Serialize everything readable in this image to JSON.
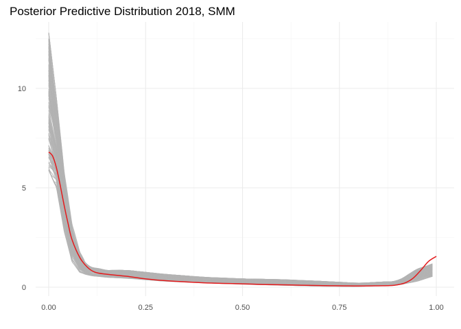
{
  "chart_data": {
    "type": "line",
    "title": "Posterior Predictive Distribution 2018, SMM",
    "xlabel": "",
    "ylabel": "",
    "xlim": [
      0,
      1
    ],
    "ylim": [
      0,
      12.8
    ],
    "x_ticks": [
      0,
      0.25,
      0.5,
      0.75,
      1
    ],
    "x_tick_labels": [
      "0.00",
      "0.25",
      "0.50",
      "0.75",
      "1.00"
    ],
    "y_ticks": [
      0,
      5,
      10
    ],
    "y_tick_labels": [
      "0",
      "5",
      "10"
    ],
    "grid": true,
    "legend": "none",
    "colors": {
      "replicates": "#b3b3b3",
      "observed": "#e41a1c"
    },
    "observed_density": {
      "x": [
        0,
        0.01,
        0.02,
        0.03,
        0.04,
        0.05,
        0.06,
        0.08,
        0.1,
        0.12,
        0.15,
        0.2,
        0.25,
        0.3,
        0.35,
        0.4,
        0.45,
        0.5,
        0.55,
        0.6,
        0.65,
        0.7,
        0.75,
        0.8,
        0.85,
        0.88,
        0.9,
        0.92,
        0.94,
        0.96,
        0.98,
        1.0
      ],
      "y": [
        6.8,
        6.6,
        6.0,
        5.1,
        4.1,
        3.2,
        2.4,
        1.5,
        1.0,
        0.75,
        0.65,
        0.55,
        0.42,
        0.33,
        0.27,
        0.22,
        0.19,
        0.17,
        0.14,
        0.12,
        0.1,
        0.08,
        0.07,
        0.06,
        0.07,
        0.08,
        0.12,
        0.22,
        0.45,
        0.85,
        1.3,
        1.55
      ]
    },
    "replicate_envelope": {
      "x": [
        0,
        0.02,
        0.04,
        0.06,
        0.08,
        0.1,
        0.15,
        0.2,
        0.3,
        0.4,
        0.5,
        0.6,
        0.7,
        0.8,
        0.9,
        0.95,
        1.0
      ],
      "y_low": [
        5.9,
        5.0,
        2.8,
        1.3,
        0.75,
        0.6,
        0.5,
        0.45,
        0.3,
        0.22,
        0.15,
        0.1,
        0.05,
        0.04,
        0.1,
        0.3,
        0.6
      ],
      "y_high": [
        12.8,
        9.5,
        5.8,
        3.2,
        1.8,
        1.05,
        0.85,
        0.85,
        0.65,
        0.5,
        0.42,
        0.38,
        0.3,
        0.2,
        0.3,
        0.9,
        1.25
      ]
    },
    "replicate_count": 120
  }
}
